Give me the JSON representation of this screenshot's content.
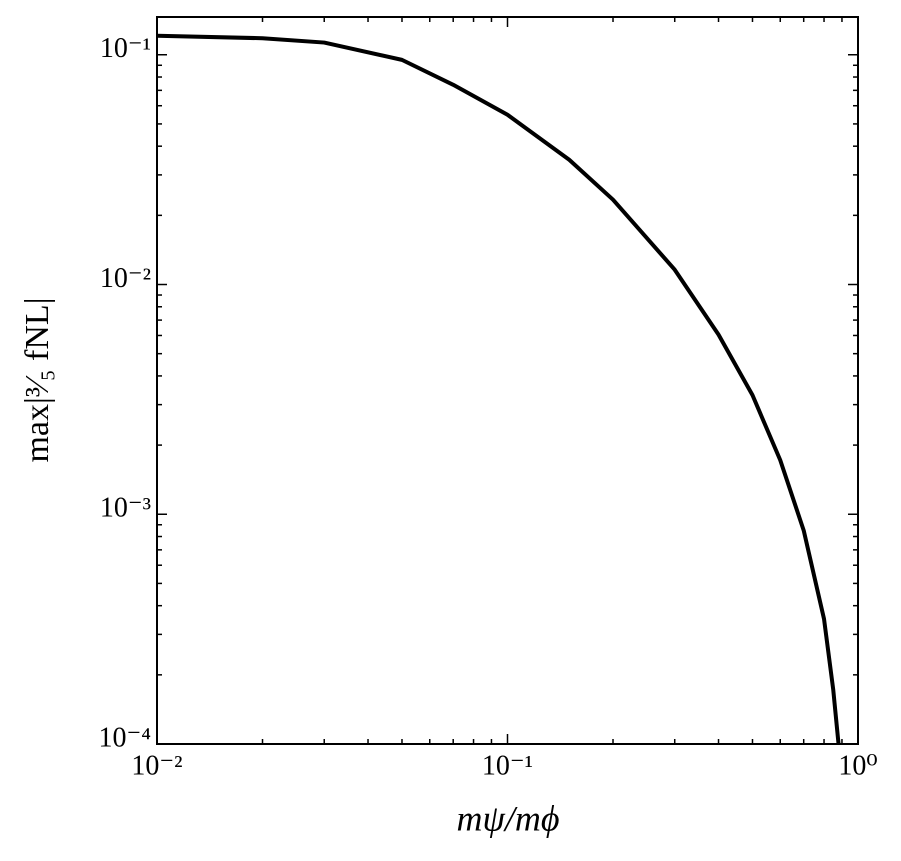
{
  "chart_data": {
    "type": "line",
    "xlabel": "mψ/mϕ",
    "ylabel": "max|³⁄₅ fNL|",
    "x": [
      0.01,
      0.02,
      0.03,
      0.05,
      0.07,
      0.1,
      0.15,
      0.2,
      0.3,
      0.4,
      0.5,
      0.6,
      0.7,
      0.8,
      0.85,
      0.88
    ],
    "values": [
      0.121,
      0.118,
      0.113,
      0.095,
      0.074,
      0.0548,
      0.0349,
      0.0234,
      0.0116,
      0.00605,
      0.0033,
      0.00172,
      0.00085,
      0.00035,
      0.000172,
      0.0001
    ],
    "color": "#000000",
    "xscale": "log",
    "yscale": "log",
    "xlim": [
      0.01,
      1
    ],
    "ylim": [
      0.0001,
      0.146
    ],
    "xticks": [
      {
        "value": 0.01,
        "label": "10⁻²"
      },
      {
        "value": 0.1,
        "label": "10⁻¹"
      },
      {
        "value": 1,
        "label": "10⁰"
      }
    ],
    "yticks": [
      {
        "value": 0.0001,
        "label": "10⁻⁴"
      },
      {
        "value": 0.001,
        "label": "10⁻³"
      },
      {
        "value": 0.01,
        "label": "10⁻²"
      },
      {
        "value": 0.1,
        "label": "10⁻¹"
      }
    ],
    "xminorticks": [
      0.02,
      0.03,
      0.04,
      0.05,
      0.06,
      0.07,
      0.08,
      0.09,
      0.2,
      0.3,
      0.4,
      0.5,
      0.6,
      0.7,
      0.8,
      0.9
    ],
    "yminorticks": [
      0.0002,
      0.0003,
      0.0004,
      0.0005,
      0.0006,
      0.0007,
      0.0008,
      0.0009,
      0.002,
      0.003,
      0.004,
      0.005,
      0.006,
      0.007,
      0.008,
      0.009,
      0.02,
      0.03,
      0.04,
      0.05,
      0.06,
      0.07,
      0.08,
      0.09
    ]
  }
}
